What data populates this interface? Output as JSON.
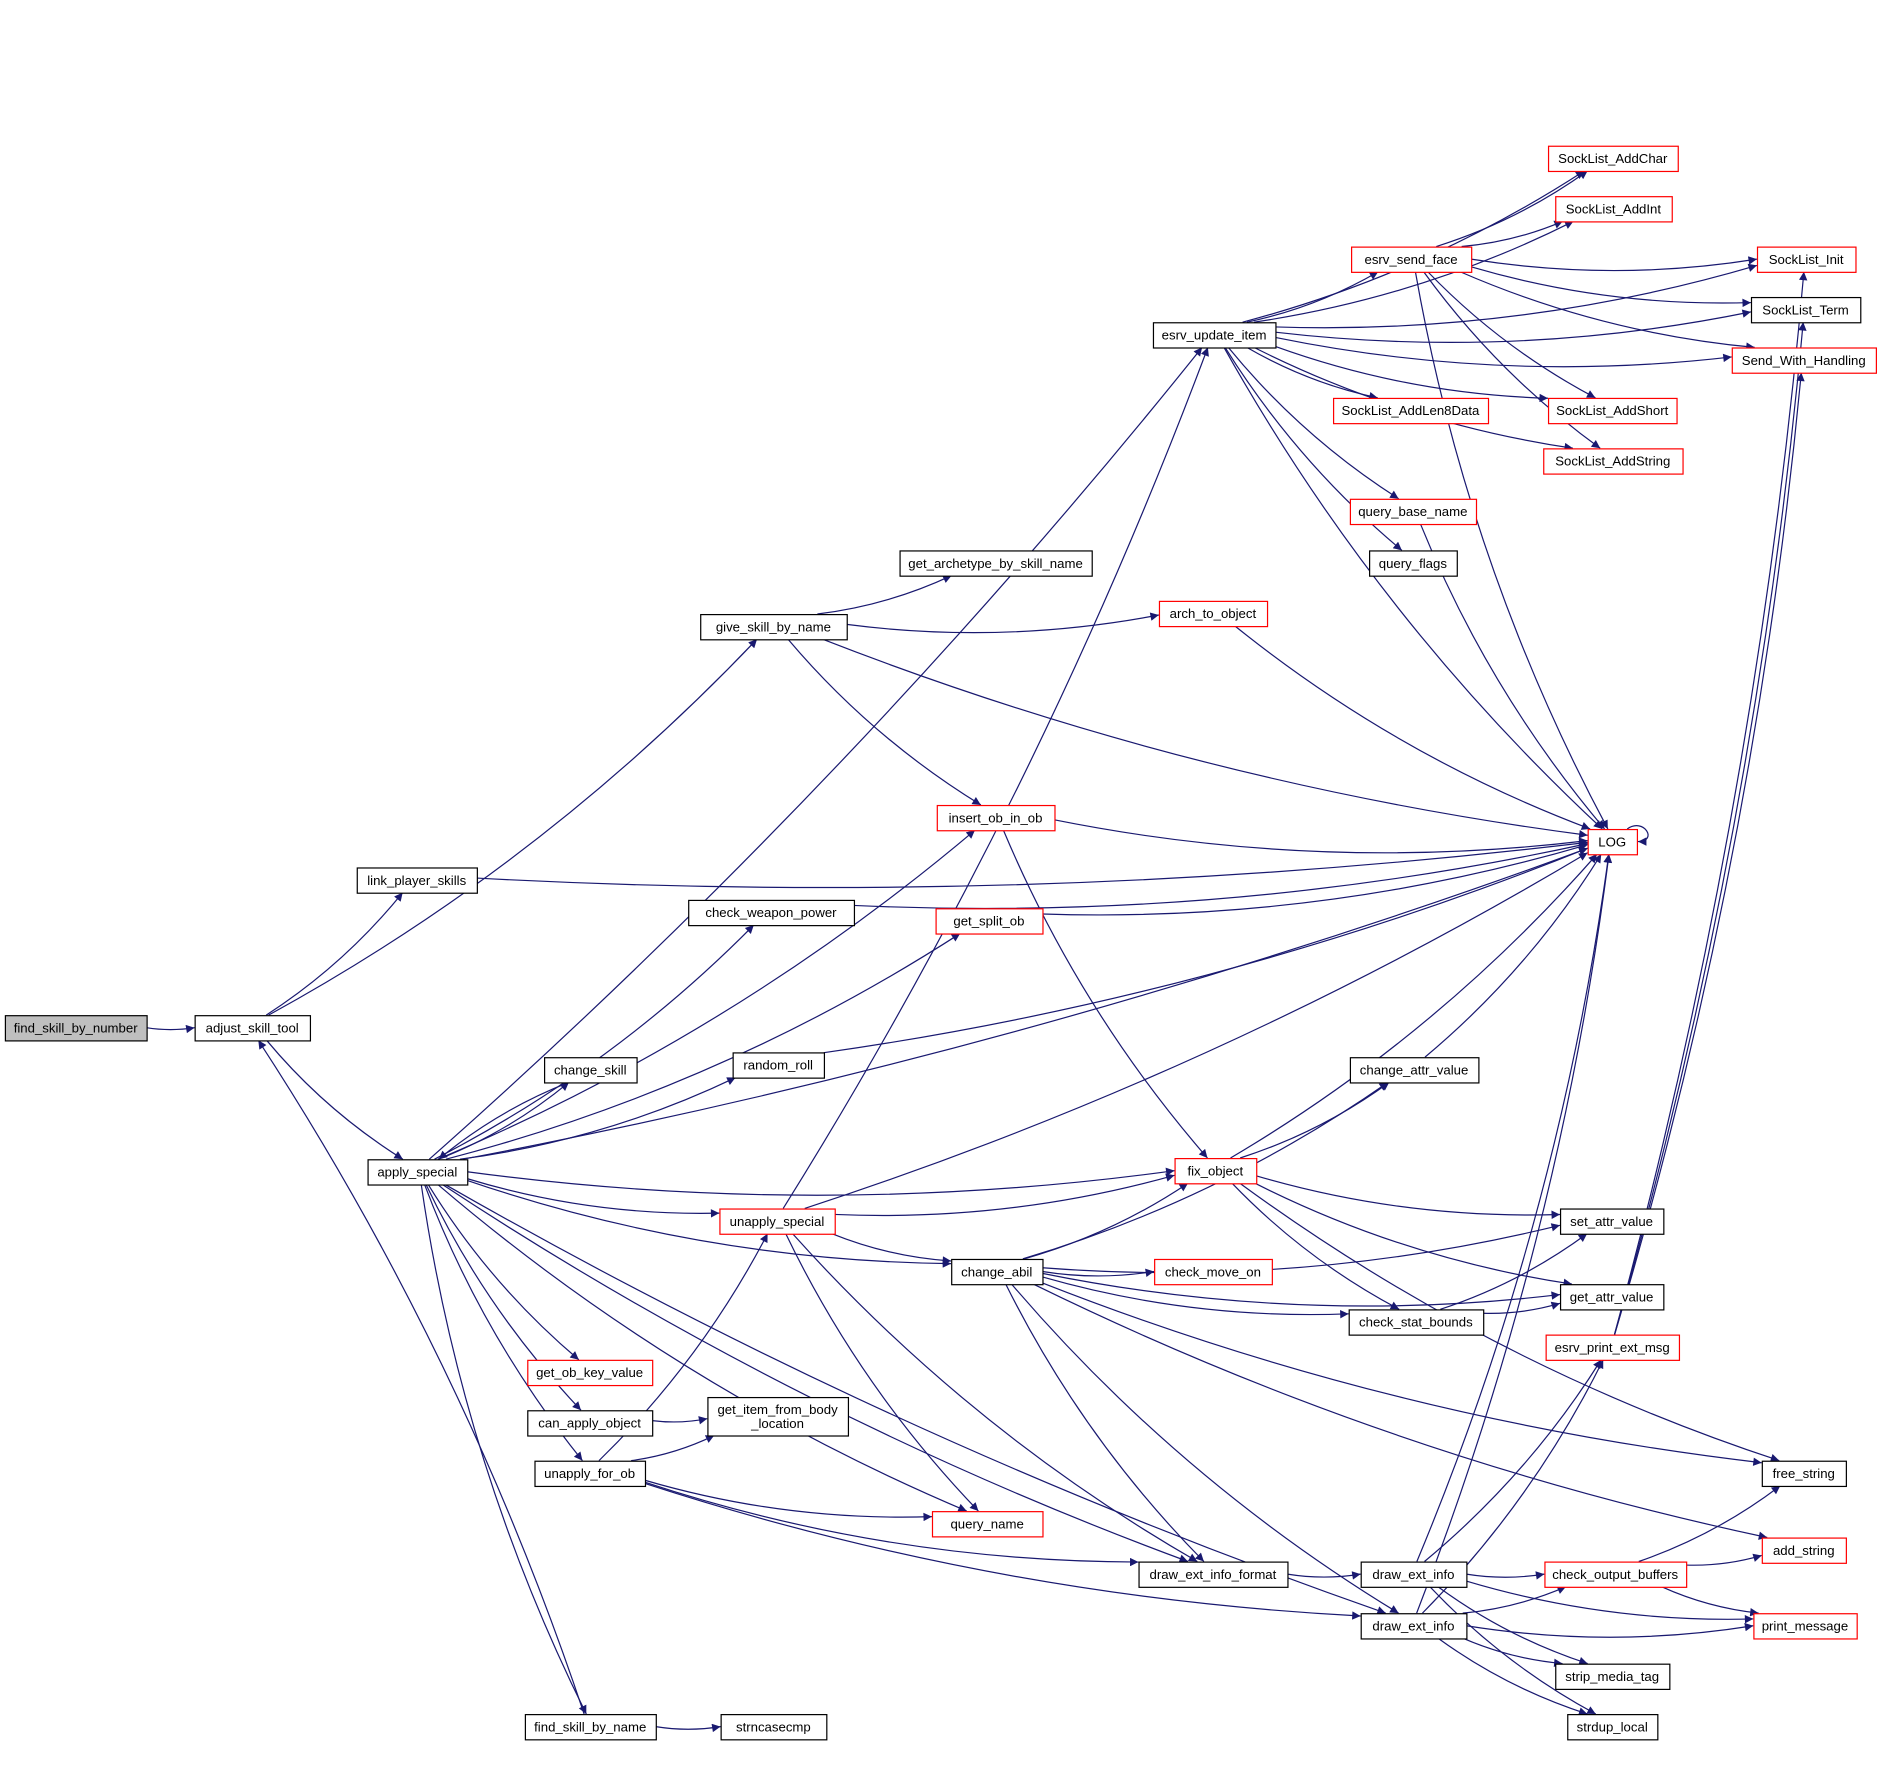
{
  "colors": {
    "edge": "#191970",
    "normal_border": "#000000",
    "truncated_border": "#ff0000",
    "root_fill": "#bfbfbf"
  },
  "nodes": [
    {
      "id": "find_skill_by_number",
      "label": [
        "find_skill_by_number"
      ],
      "style": "root"
    },
    {
      "id": "adjust_skill_tool",
      "label": [
        "adjust_skill_tool"
      ],
      "style": "normal"
    },
    {
      "id": "apply_special",
      "label": [
        "apply_special"
      ],
      "style": "normal"
    },
    {
      "id": "link_player_skills",
      "label": [
        "link_player_skills"
      ],
      "style": "normal"
    },
    {
      "id": "give_skill_by_name",
      "label": [
        "give_skill_by_name"
      ],
      "style": "normal"
    },
    {
      "id": "get_archetype_by_skill_name",
      "label": [
        "get_archetype_by_skill_name"
      ],
      "style": "normal"
    },
    {
      "id": "arch_to_object",
      "label": [
        "arch_to_object"
      ],
      "style": "truncated"
    },
    {
      "id": "esrv_update_item",
      "label": [
        "esrv_update_item"
      ],
      "style": "normal"
    },
    {
      "id": "insert_ob_in_ob",
      "label": [
        "insert_ob_in_ob"
      ],
      "style": "truncated"
    },
    {
      "id": "check_weapon_power",
      "label": [
        "check_weapon_power"
      ],
      "style": "normal"
    },
    {
      "id": "get_split_ob",
      "label": [
        "get_split_ob"
      ],
      "style": "truncated"
    },
    {
      "id": "random_roll",
      "label": [
        "random_roll"
      ],
      "style": "normal"
    },
    {
      "id": "change_skill",
      "label": [
        "change_skill"
      ],
      "style": "normal"
    },
    {
      "id": "unapply_special",
      "label": [
        "unapply_special"
      ],
      "style": "truncated"
    },
    {
      "id": "fix_object",
      "label": [
        "fix_object"
      ],
      "style": "truncated"
    },
    {
      "id": "change_attr_value",
      "label": [
        "change_attr_value"
      ],
      "style": "normal"
    },
    {
      "id": "change_abil",
      "label": [
        "change_abil"
      ],
      "style": "normal"
    },
    {
      "id": "check_move_on",
      "label": [
        "check_move_on"
      ],
      "style": "truncated"
    },
    {
      "id": "check_stat_bounds",
      "label": [
        "check_stat_bounds"
      ],
      "style": "normal"
    },
    {
      "id": "set_attr_value",
      "label": [
        "set_attr_value"
      ],
      "style": "normal"
    },
    {
      "id": "get_attr_value",
      "label": [
        "get_attr_value"
      ],
      "style": "normal"
    },
    {
      "id": "get_ob_key_value",
      "label": [
        "get_ob_key_value"
      ],
      "style": "truncated"
    },
    {
      "id": "can_apply_object",
      "label": [
        "can_apply_object"
      ],
      "style": "normal"
    },
    {
      "id": "get_item_from_body_location",
      "label": [
        "get_item_from_body",
        "_location"
      ],
      "style": "normal"
    },
    {
      "id": "unapply_for_ob",
      "label": [
        "unapply_for_ob"
      ],
      "style": "normal"
    },
    {
      "id": "query_name",
      "label": [
        "query_name"
      ],
      "style": "truncated"
    },
    {
      "id": "draw_ext_info_format",
      "label": [
        "draw_ext_info_format"
      ],
      "style": "normal"
    },
    {
      "id": "draw_ext_info_1",
      "label": [
        "draw_ext_info"
      ],
      "style": "normal"
    },
    {
      "id": "draw_ext_info_2",
      "label": [
        "draw_ext_info"
      ],
      "style": "normal"
    },
    {
      "id": "find_skill_by_name",
      "label": [
        "find_skill_by_name"
      ],
      "style": "normal"
    },
    {
      "id": "strncasecmp",
      "label": [
        "strncasecmp"
      ],
      "style": "normal"
    },
    {
      "id": "esrv_send_face",
      "label": [
        "esrv_send_face"
      ],
      "style": "truncated"
    },
    {
      "id": "SockList_AddChar",
      "label": [
        "SockList_AddChar"
      ],
      "style": "truncated"
    },
    {
      "id": "SockList_AddInt",
      "label": [
        "SockList_AddInt"
      ],
      "style": "truncated"
    },
    {
      "id": "SockList_Init",
      "label": [
        "SockList_Init"
      ],
      "style": "truncated"
    },
    {
      "id": "SockList_Term",
      "label": [
        "SockList_Term"
      ],
      "style": "normal"
    },
    {
      "id": "Send_With_Handling",
      "label": [
        "Send_With_Handling"
      ],
      "style": "truncated"
    },
    {
      "id": "SockList_AddLen8Data",
      "label": [
        "SockList_AddLen8Data"
      ],
      "style": "truncated"
    },
    {
      "id": "SockList_AddShort",
      "label": [
        "SockList_AddShort"
      ],
      "style": "truncated"
    },
    {
      "id": "SockList_AddString",
      "label": [
        "SockList_AddString"
      ],
      "style": "truncated"
    },
    {
      "id": "query_base_name",
      "label": [
        "query_base_name"
      ],
      "style": "truncated"
    },
    {
      "id": "query_flags",
      "label": [
        "query_flags"
      ],
      "style": "normal"
    },
    {
      "id": "LOG",
      "label": [
        "LOG"
      ],
      "style": "truncated"
    },
    {
      "id": "esrv_print_ext_msg",
      "label": [
        "esrv_print_ext_msg"
      ],
      "style": "truncated"
    },
    {
      "id": "free_string",
      "label": [
        "free_string"
      ],
      "style": "normal"
    },
    {
      "id": "add_string",
      "label": [
        "add_string"
      ],
      "style": "truncated"
    },
    {
      "id": "check_output_buffers",
      "label": [
        "check_output_buffers"
      ],
      "style": "truncated"
    },
    {
      "id": "print_message",
      "label": [
        "print_message"
      ],
      "style": "truncated"
    },
    {
      "id": "strip_media_tag",
      "label": [
        "strip_media_tag"
      ],
      "style": "normal"
    },
    {
      "id": "strdup_local",
      "label": [
        "strdup_local"
      ],
      "style": "normal"
    }
  ],
  "edges": [
    [
      "find_skill_by_number",
      "adjust_skill_tool"
    ],
    [
      "adjust_skill_tool",
      "give_skill_by_name"
    ],
    [
      "adjust_skill_tool",
      "link_player_skills"
    ],
    [
      "adjust_skill_tool",
      "apply_special"
    ],
    [
      "find_skill_by_name",
      "adjust_skill_tool"
    ],
    [
      "link_player_skills",
      "LOG"
    ],
    [
      "give_skill_by_name",
      "get_archetype_by_skill_name"
    ],
    [
      "give_skill_by_name",
      "arch_to_object"
    ],
    [
      "give_skill_by_name",
      "LOG"
    ],
    [
      "give_skill_by_name",
      "insert_ob_in_ob"
    ],
    [
      "arch_to_object",
      "LOG"
    ],
    [
      "apply_special",
      "esrv_update_item"
    ],
    [
      "apply_special",
      "LOG"
    ],
    [
      "apply_special",
      "insert_ob_in_ob"
    ],
    [
      "apply_special",
      "check_weapon_power"
    ],
    [
      "apply_special",
      "get_split_ob"
    ],
    [
      "apply_special",
      "random_roll"
    ],
    [
      "apply_special",
      "change_skill"
    ],
    [
      "apply_special",
      "fix_object"
    ],
    [
      "apply_special",
      "unapply_special"
    ],
    [
      "apply_special",
      "change_abil"
    ],
    [
      "apply_special",
      "draw_ext_info_format"
    ],
    [
      "apply_special",
      "get_ob_key_value"
    ],
    [
      "apply_special",
      "can_apply_object"
    ],
    [
      "apply_special",
      "unapply_for_ob"
    ],
    [
      "apply_special",
      "query_name"
    ],
    [
      "apply_special",
      "draw_ext_info_2"
    ],
    [
      "apply_special",
      "find_skill_by_name"
    ],
    [
      "change_skill",
      "apply_special"
    ],
    [
      "esrv_update_item",
      "SockList_Init"
    ],
    [
      "esrv_update_item",
      "SockList_Term"
    ],
    [
      "esrv_update_item",
      "Send_With_Handling"
    ],
    [
      "esrv_update_item",
      "SockList_AddChar"
    ],
    [
      "esrv_update_item",
      "SockList_AddInt"
    ],
    [
      "esrv_update_item",
      "esrv_send_face"
    ],
    [
      "esrv_update_item",
      "SockList_AddLen8Data"
    ],
    [
      "esrv_update_item",
      "SockList_AddShort"
    ],
    [
      "esrv_update_item",
      "SockList_AddString"
    ],
    [
      "esrv_update_item",
      "query_base_name"
    ],
    [
      "esrv_update_item",
      "query_flags"
    ],
    [
      "esrv_update_item",
      "LOG"
    ],
    [
      "esrv_send_face",
      "SockList_AddChar"
    ],
    [
      "esrv_send_face",
      "SockList_AddInt"
    ],
    [
      "esrv_send_face",
      "SockList_Init"
    ],
    [
      "esrv_send_face",
      "SockList_Term"
    ],
    [
      "esrv_send_face",
      "Send_With_Handling"
    ],
    [
      "esrv_send_face",
      "SockList_AddShort"
    ],
    [
      "esrv_send_face",
      "SockList_AddString"
    ],
    [
      "esrv_send_face",
      "LOG"
    ],
    [
      "query_base_name",
      "LOG"
    ],
    [
      "insert_ob_in_ob",
      "LOG"
    ],
    [
      "insert_ob_in_ob",
      "fix_object"
    ],
    [
      "check_weapon_power",
      "LOG"
    ],
    [
      "get_split_ob",
      "LOG"
    ],
    [
      "random_roll",
      "LOG"
    ],
    [
      "unapply_special",
      "esrv_update_item"
    ],
    [
      "unapply_special",
      "LOG"
    ],
    [
      "unapply_special",
      "fix_object"
    ],
    [
      "unapply_special",
      "change_abil"
    ],
    [
      "unapply_special",
      "query_name"
    ],
    [
      "unapply_special",
      "draw_ext_info_format"
    ],
    [
      "fix_object",
      "change_attr_value"
    ],
    [
      "fix_object",
      "LOG"
    ],
    [
      "fix_object",
      "set_attr_value"
    ],
    [
      "fix_object",
      "get_attr_value"
    ],
    [
      "fix_object",
      "check_stat_bounds"
    ],
    [
      "fix_object",
      "free_string"
    ],
    [
      "change_attr_value",
      "LOG"
    ],
    [
      "change_abil",
      "fix_object"
    ],
    [
      "change_abil",
      "change_attr_value"
    ],
    [
      "change_abil",
      "set_attr_value"
    ],
    [
      "change_abil",
      "check_move_on"
    ],
    [
      "change_abil",
      "check_stat_bounds"
    ],
    [
      "change_abil",
      "get_attr_value"
    ],
    [
      "change_abil",
      "free_string"
    ],
    [
      "change_abil",
      "add_string"
    ],
    [
      "change_abil",
      "draw_ext_info_format"
    ],
    [
      "change_abil",
      "draw_ext_info_2"
    ],
    [
      "check_stat_bounds",
      "set_attr_value"
    ],
    [
      "check_stat_bounds",
      "get_attr_value"
    ],
    [
      "can_apply_object",
      "get_item_from_body_location"
    ],
    [
      "unapply_for_ob",
      "unapply_special"
    ],
    [
      "unapply_for_ob",
      "get_item_from_body_location"
    ],
    [
      "unapply_for_ob",
      "query_name"
    ],
    [
      "unapply_for_ob",
      "draw_ext_info_format"
    ],
    [
      "unapply_for_ob",
      "draw_ext_info_2"
    ],
    [
      "draw_ext_info_format",
      "draw_ext_info_1"
    ],
    [
      "draw_ext_info_1",
      "LOG"
    ],
    [
      "draw_ext_info_1",
      "esrv_print_ext_msg"
    ],
    [
      "draw_ext_info_1",
      "check_output_buffers"
    ],
    [
      "draw_ext_info_1",
      "print_message"
    ],
    [
      "draw_ext_info_1",
      "strip_media_tag"
    ],
    [
      "draw_ext_info_1",
      "strdup_local"
    ],
    [
      "draw_ext_info_2",
      "LOG"
    ],
    [
      "draw_ext_info_2",
      "esrv_print_ext_msg"
    ],
    [
      "draw_ext_info_2",
      "check_output_buffers"
    ],
    [
      "draw_ext_info_2",
      "strip_media_tag"
    ],
    [
      "draw_ext_info_2",
      "strdup_local"
    ],
    [
      "draw_ext_info_2",
      "print_message"
    ],
    [
      "esrv_print_ext_msg",
      "SockList_Init"
    ],
    [
      "esrv_print_ext_msg",
      "SockList_Term"
    ],
    [
      "esrv_print_ext_msg",
      "Send_With_Handling"
    ],
    [
      "check_output_buffers",
      "free_string"
    ],
    [
      "check_output_buffers",
      "add_string"
    ],
    [
      "check_output_buffers",
      "print_message"
    ],
    [
      "find_skill_by_name",
      "strncasecmp"
    ],
    [
      "LOG",
      "LOG"
    ]
  ]
}
